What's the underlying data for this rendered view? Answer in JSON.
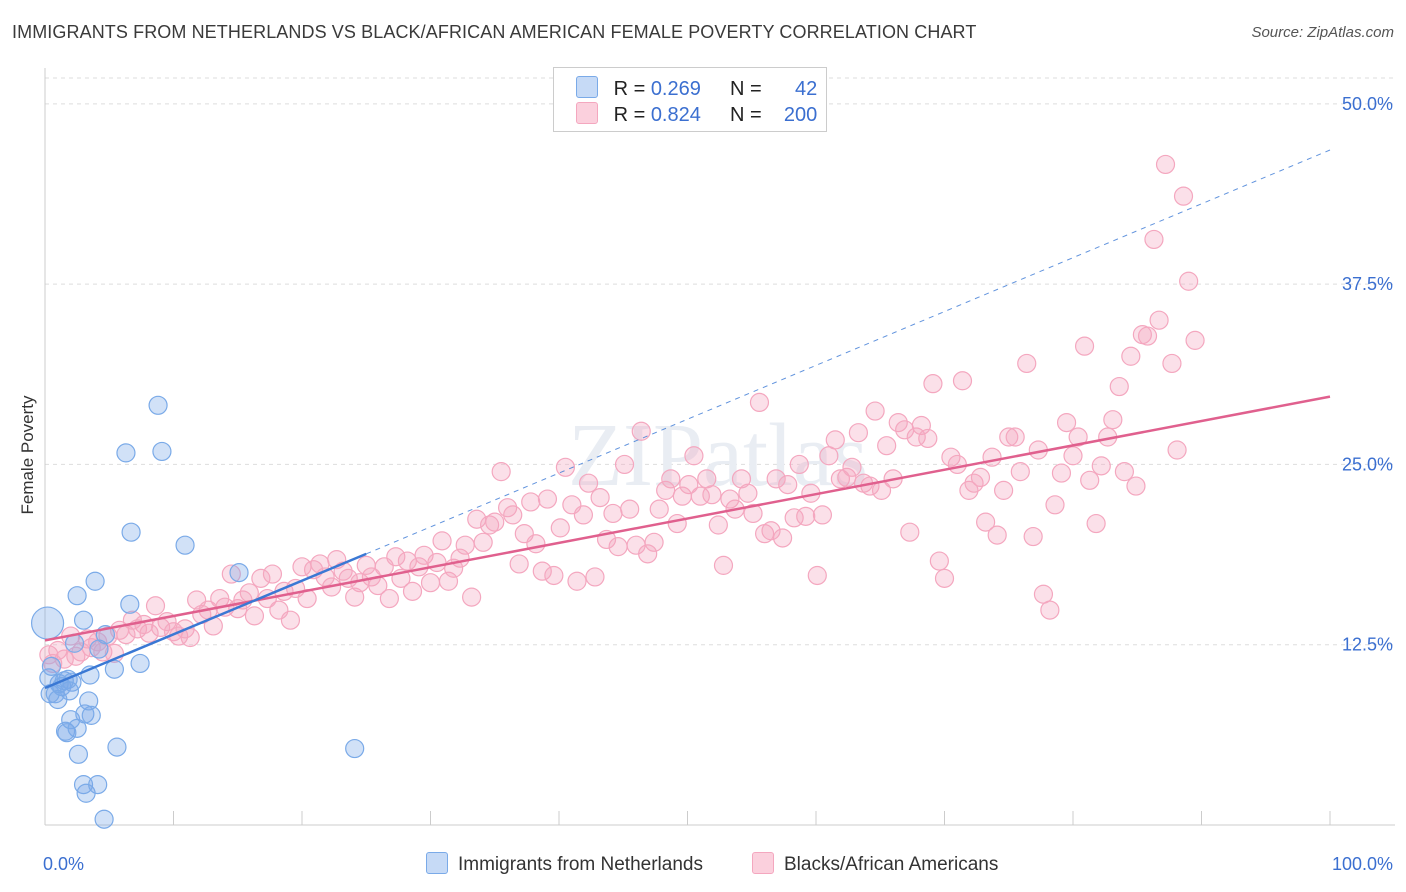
{
  "title": "IMMIGRANTS FROM NETHERLANDS VS BLACK/AFRICAN AMERICAN FEMALE POVERTY CORRELATION CHART",
  "source": "Source: ZipAtlas.com",
  "watermark": "ZIPatlas",
  "legend": {
    "r_label": "R =",
    "n_label": "N =",
    "series1": {
      "r": "0.269",
      "n": "42"
    },
    "series2": {
      "r": "0.824",
      "n": "200"
    }
  },
  "bottom_legend": {
    "series1": "Immigrants from Netherlands",
    "series2": "Blacks/African Americans"
  },
  "chart_data": {
    "type": "scatter",
    "title": "IMMIGRANTS FROM NETHERLANDS VS BLACK/AFRICAN AMERICAN FEMALE POVERTY CORRELATION CHART",
    "xlabel": "",
    "ylabel": "Female Poverty",
    "xlim": [
      0,
      100
    ],
    "ylim": [
      0,
      52
    ],
    "x_tick_labels": [
      "0.0%",
      "100.0%"
    ],
    "y_ticks": [
      12.5,
      25.0,
      37.5,
      50.0
    ],
    "y_tick_labels": [
      "12.5%",
      "25.0%",
      "37.5%",
      "50.0%"
    ],
    "colors": {
      "series1": "#7aaae8",
      "series1_line": "#3a78d4",
      "series2": "#f4a7bf",
      "series2_line": "#e0608e"
    },
    "series": [
      {
        "name": "Immigrants from Netherlands",
        "trend": {
          "x": [
            0,
            25
          ],
          "y": [
            9.5,
            18.8
          ],
          "extended_to": [
            100,
            46.8
          ]
        },
        "points": [
          [
            0.2,
            14.0
          ],
          [
            0.3,
            10.2
          ],
          [
            0.4,
            9.1
          ],
          [
            0.5,
            11.0
          ],
          [
            0.8,
            9.1
          ],
          [
            1.0,
            8.7
          ],
          [
            1.1,
            9.8
          ],
          [
            1.3,
            9.6
          ],
          [
            1.5,
            10.0
          ],
          [
            1.6,
            6.5
          ],
          [
            1.7,
            6.4
          ],
          [
            1.8,
            10.1
          ],
          [
            2.0,
            7.3
          ],
          [
            2.1,
            9.9
          ],
          [
            2.3,
            12.6
          ],
          [
            2.5,
            6.7
          ],
          [
            2.5,
            15.9
          ],
          [
            2.6,
            4.9
          ],
          [
            3.0,
            14.2
          ],
          [
            3.0,
            2.8
          ],
          [
            3.1,
            7.7
          ],
          [
            3.2,
            2.2
          ],
          [
            3.4,
            8.6
          ],
          [
            3.6,
            7.6
          ],
          [
            3.9,
            16.9
          ],
          [
            4.1,
            2.8
          ],
          [
            4.2,
            12.2
          ],
          [
            4.6,
            0.4
          ],
          [
            4.7,
            13.2
          ],
          [
            5.4,
            10.8
          ],
          [
            5.6,
            5.4
          ],
          [
            6.3,
            25.8
          ],
          [
            6.6,
            15.3
          ],
          [
            6.7,
            20.3
          ],
          [
            7.4,
            11.2
          ],
          [
            8.8,
            29.1
          ],
          [
            9.1,
            25.9
          ],
          [
            10.9,
            19.4
          ],
          [
            15.1,
            17.5
          ],
          [
            24.1,
            5.3
          ],
          [
            3.5,
            10.4
          ],
          [
            1.9,
            9.3
          ]
        ]
      },
      {
        "name": "Blacks/African Americans",
        "trend": {
          "x": [
            0,
            100
          ],
          "y": [
            12.8,
            29.7
          ]
        },
        "points": [
          [
            0.3,
            11.8
          ],
          [
            0.6,
            11.2
          ],
          [
            1.0,
            12.1
          ],
          [
            1.5,
            11.5
          ],
          [
            2.0,
            13.1
          ],
          [
            2.4,
            11.7
          ],
          [
            2.8,
            12.0
          ],
          [
            3.3,
            12.9
          ],
          [
            3.6,
            12.3
          ],
          [
            4.1,
            12.7
          ],
          [
            4.5,
            12.0
          ],
          [
            4.9,
            13.1
          ],
          [
            5.4,
            11.9
          ],
          [
            5.8,
            13.5
          ],
          [
            6.3,
            13.2
          ],
          [
            6.8,
            14.2
          ],
          [
            7.2,
            13.6
          ],
          [
            7.7,
            13.9
          ],
          [
            8.1,
            13.3
          ],
          [
            8.6,
            15.2
          ],
          [
            9.0,
            13.7
          ],
          [
            9.5,
            14.1
          ],
          [
            10.0,
            13.4
          ],
          [
            10.4,
            13.1
          ],
          [
            10.9,
            13.6
          ],
          [
            11.3,
            13.0
          ],
          [
            11.8,
            15.6
          ],
          [
            12.2,
            14.6
          ],
          [
            12.7,
            14.9
          ],
          [
            13.1,
            13.8
          ],
          [
            13.6,
            15.7
          ],
          [
            14.0,
            15.1
          ],
          [
            14.5,
            17.4
          ],
          [
            15.0,
            15.0
          ],
          [
            15.4,
            15.6
          ],
          [
            15.9,
            16.1
          ],
          [
            16.3,
            14.5
          ],
          [
            16.8,
            17.1
          ],
          [
            17.3,
            15.7
          ],
          [
            17.7,
            17.4
          ],
          [
            18.2,
            14.9
          ],
          [
            18.6,
            16.2
          ],
          [
            19.1,
            14.2
          ],
          [
            19.5,
            16.4
          ],
          [
            20.0,
            17.9
          ],
          [
            20.4,
            15.7
          ],
          [
            20.9,
            17.7
          ],
          [
            21.4,
            18.1
          ],
          [
            21.8,
            17.2
          ],
          [
            22.3,
            16.5
          ],
          [
            22.7,
            18.4
          ],
          [
            23.2,
            17.6
          ],
          [
            23.6,
            17.1
          ],
          [
            24.1,
            15.8
          ],
          [
            24.5,
            16.8
          ],
          [
            25.0,
            18.0
          ],
          [
            25.4,
            17.2
          ],
          [
            25.9,
            16.6
          ],
          [
            26.4,
            17.9
          ],
          [
            26.8,
            15.7
          ],
          [
            27.3,
            18.6
          ],
          [
            27.7,
            17.1
          ],
          [
            28.2,
            18.3
          ],
          [
            28.6,
            16.2
          ],
          [
            29.1,
            17.9
          ],
          [
            29.5,
            18.7
          ],
          [
            30.0,
            16.8
          ],
          [
            30.5,
            18.2
          ],
          [
            30.9,
            19.7
          ],
          [
            31.4,
            16.9
          ],
          [
            31.8,
            17.8
          ],
          [
            32.3,
            18.5
          ],
          [
            32.7,
            19.4
          ],
          [
            33.2,
            15.8
          ],
          [
            33.6,
            21.2
          ],
          [
            34.1,
            19.6
          ],
          [
            34.6,
            20.8
          ],
          [
            35.0,
            21.0
          ],
          [
            35.5,
            24.5
          ],
          [
            36.0,
            22.0
          ],
          [
            36.4,
            21.5
          ],
          [
            36.9,
            18.1
          ],
          [
            37.3,
            20.2
          ],
          [
            37.8,
            22.4
          ],
          [
            38.2,
            19.5
          ],
          [
            38.7,
            17.6
          ],
          [
            39.1,
            22.6
          ],
          [
            39.6,
            17.3
          ],
          [
            40.1,
            20.6
          ],
          [
            40.5,
            24.8
          ],
          [
            41.0,
            22.2
          ],
          [
            41.4,
            16.9
          ],
          [
            41.9,
            21.5
          ],
          [
            42.3,
            23.7
          ],
          [
            42.8,
            17.2
          ],
          [
            43.2,
            22.7
          ],
          [
            43.7,
            19.8
          ],
          [
            44.2,
            21.6
          ],
          [
            44.6,
            19.3
          ],
          [
            45.1,
            25.0
          ],
          [
            45.5,
            21.9
          ],
          [
            46.0,
            19.4
          ],
          [
            46.4,
            27.3
          ],
          [
            46.9,
            18.8
          ],
          [
            47.4,
            19.6
          ],
          [
            47.8,
            21.9
          ],
          [
            48.3,
            23.2
          ],
          [
            48.7,
            24.0
          ],
          [
            49.2,
            20.9
          ],
          [
            49.6,
            22.8
          ],
          [
            50.1,
            23.6
          ],
          [
            50.5,
            25.6
          ],
          [
            51.0,
            22.8
          ],
          [
            51.5,
            24.0
          ],
          [
            51.9,
            22.9
          ],
          [
            52.4,
            20.8
          ],
          [
            52.8,
            18.0
          ],
          [
            53.3,
            22.6
          ],
          [
            53.7,
            21.9
          ],
          [
            54.2,
            24.0
          ],
          [
            54.7,
            23.0
          ],
          [
            55.1,
            21.6
          ],
          [
            55.6,
            29.3
          ],
          [
            56.0,
            20.2
          ],
          [
            56.5,
            20.4
          ],
          [
            56.9,
            24.0
          ],
          [
            57.4,
            19.9
          ],
          [
            57.8,
            23.6
          ],
          [
            58.3,
            21.3
          ],
          [
            58.7,
            25.0
          ],
          [
            59.2,
            21.4
          ],
          [
            59.6,
            23.0
          ],
          [
            60.1,
            17.3
          ],
          [
            60.5,
            21.5
          ],
          [
            61.0,
            25.6
          ],
          [
            61.5,
            26.7
          ],
          [
            61.9,
            24.0
          ],
          [
            62.4,
            24.1
          ],
          [
            62.8,
            24.8
          ],
          [
            63.3,
            27.2
          ],
          [
            63.7,
            23.7
          ],
          [
            64.2,
            23.5
          ],
          [
            64.6,
            28.7
          ],
          [
            65.1,
            23.2
          ],
          [
            65.5,
            26.3
          ],
          [
            66.0,
            24.0
          ],
          [
            66.4,
            27.9
          ],
          [
            66.9,
            27.4
          ],
          [
            67.3,
            20.3
          ],
          [
            67.8,
            26.9
          ],
          [
            68.2,
            27.7
          ],
          [
            68.7,
            26.8
          ],
          [
            69.1,
            30.6
          ],
          [
            69.6,
            18.3
          ],
          [
            70.0,
            17.1
          ],
          [
            70.5,
            25.5
          ],
          [
            71.0,
            25.0
          ],
          [
            71.4,
            30.8
          ],
          [
            71.9,
            23.2
          ],
          [
            72.3,
            23.7
          ],
          [
            72.8,
            24.1
          ],
          [
            73.2,
            21.0
          ],
          [
            73.7,
            25.5
          ],
          [
            74.1,
            20.1
          ],
          [
            74.6,
            23.2
          ],
          [
            75.0,
            26.9
          ],
          [
            75.5,
            26.9
          ],
          [
            75.9,
            24.5
          ],
          [
            76.4,
            32.0
          ],
          [
            76.9,
            20.0
          ],
          [
            77.3,
            26.0
          ],
          [
            77.7,
            16.0
          ],
          [
            78.2,
            14.9
          ],
          [
            78.6,
            22.2
          ],
          [
            79.1,
            24.4
          ],
          [
            79.5,
            27.9
          ],
          [
            80.0,
            25.6
          ],
          [
            80.4,
            26.9
          ],
          [
            80.9,
            33.2
          ],
          [
            81.3,
            23.9
          ],
          [
            81.8,
            20.9
          ],
          [
            82.2,
            24.9
          ],
          [
            82.7,
            26.9
          ],
          [
            83.1,
            28.1
          ],
          [
            83.6,
            30.4
          ],
          [
            84.0,
            24.5
          ],
          [
            84.5,
            32.5
          ],
          [
            84.9,
            23.5
          ],
          [
            85.4,
            34.0
          ],
          [
            85.8,
            33.9
          ],
          [
            86.3,
            40.6
          ],
          [
            86.7,
            35.0
          ],
          [
            87.2,
            45.8
          ],
          [
            87.7,
            32.0
          ],
          [
            88.1,
            26.0
          ],
          [
            88.6,
            43.6
          ],
          [
            89.0,
            37.7
          ],
          [
            89.5,
            33.6
          ]
        ]
      }
    ]
  }
}
